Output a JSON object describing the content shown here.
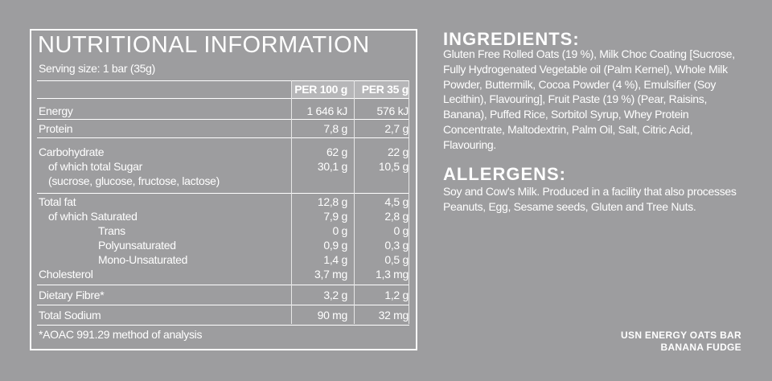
{
  "nutrition": {
    "title": "NUTRITIONAL INFORMATION",
    "serving": "Serving size: 1 bar (35g)",
    "columns": [
      "PER 100 g",
      "PER 35 g"
    ],
    "rows": [
      {
        "label": "Energy",
        "per_100g": "1 646 kJ",
        "per_35g": "576 kJ"
      },
      {
        "label": "Protein",
        "per_100g": "7,8 g",
        "per_35g": "2,7 g"
      },
      {
        "label": "Carbohydrate",
        "per_100g": "62 g",
        "per_35g": "22 g"
      },
      {
        "label": "of which total Sugar",
        "per_100g": "30,1 g",
        "per_35g": "10,5 g"
      },
      {
        "label": "(sucrose, glucose, fructose, lactose)"
      },
      {
        "label": "Total fat",
        "per_100g": "12,8 g",
        "per_35g": "4,5 g"
      },
      {
        "label": "of which Saturated",
        "per_100g": "7,9 g",
        "per_35g": "2,8 g"
      },
      {
        "label": "Trans",
        "per_100g": "0 g",
        "per_35g": "0 g"
      },
      {
        "label": "Polyunsaturated",
        "per_100g": "0,9 g",
        "per_35g": "0,3 g"
      },
      {
        "label": "Mono-Unsaturated",
        "per_100g": "1,4 g",
        "per_35g": "0,5 g"
      },
      {
        "label": "Cholesterol",
        "per_100g": "3,7 mg",
        "per_35g": "1,3 mg"
      },
      {
        "label": "Dietary Fibre*",
        "per_100g": "3,2 g",
        "per_35g": "1,2 g"
      },
      {
        "label": "Total Sodium",
        "per_100g": "90 mg",
        "per_35g": "32 mg"
      }
    ],
    "footnote": "*AOAC 991.29 method of analysis"
  },
  "ingredients": {
    "title": "INGREDIENTS:",
    "text": "Gluten Free Rolled Oats (19 %), Milk Choc Coating [Sucrose, Fully Hydrogenated Vegetable oil (Palm Kernel), Whole Milk Powder, Buttermilk, Cocoa Powder (4 %), Emulsifier (Soy Lecithin), Flavouring], Fruit Paste (19 %) (Pear, Raisins, Banana), Puffed Rice, Sorbitol Syrup, Whey Protein Concentrate, Maltodextrin, Palm Oil, Salt, Citric Acid, Flavouring."
  },
  "allergens": {
    "title": "ALLERGENS:",
    "text": "Soy and Cow's Milk. Produced in a facility that also processes Peanuts, Egg, Sesame seeds, Gluten and Tree Nuts."
  },
  "product": {
    "brand": "USN ENERGY OATS BAR",
    "flavour": "BANANA FUDGE"
  }
}
